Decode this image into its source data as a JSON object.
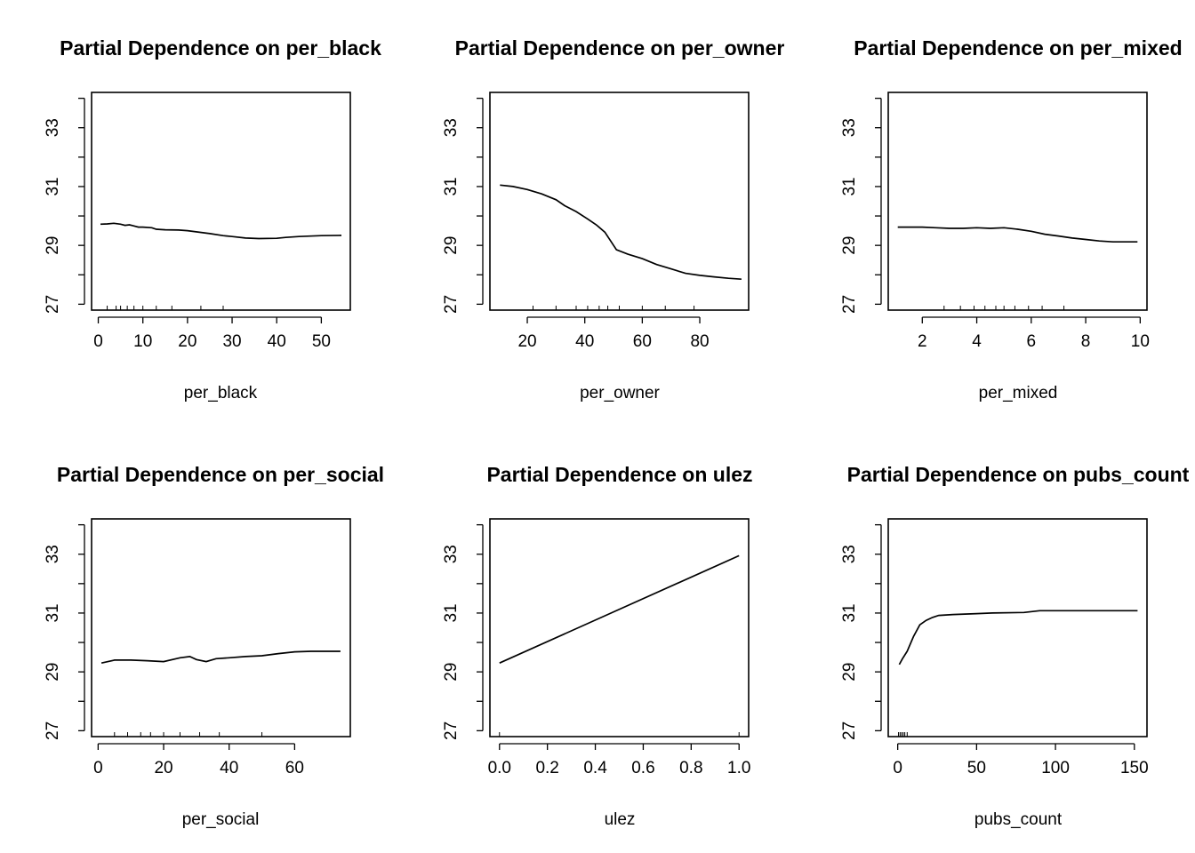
{
  "chart_data": [
    {
      "type": "line",
      "title": "Partial Dependence on per_black",
      "xlabel": "per_black",
      "ylabel": "",
      "xlim": [
        -1.5,
        56.5
      ],
      "ylim": [
        26.8,
        34.2
      ],
      "xticks": [
        0,
        10,
        20,
        30,
        40,
        50
      ],
      "yticks": [
        27,
        28,
        29,
        30,
        31,
        32,
        33,
        34
      ],
      "ytick_labels": [
        "27",
        "",
        "29",
        "",
        "31",
        "",
        "33",
        ""
      ],
      "x": [
        0.5,
        2,
        3.5,
        5,
        6,
        7,
        8,
        9,
        10,
        12,
        13,
        15,
        18,
        20,
        25,
        28,
        30,
        33,
        36,
        40,
        42,
        45,
        50,
        54.5
      ],
      "y": [
        29.72,
        29.73,
        29.75,
        29.72,
        29.68,
        29.7,
        29.66,
        29.62,
        29.62,
        29.6,
        29.55,
        29.53,
        29.52,
        29.5,
        29.4,
        29.33,
        29.3,
        29.25,
        29.23,
        29.24,
        29.27,
        29.3,
        29.33,
        29.34
      ],
      "rug": [
        2,
        4,
        5,
        6.5,
        8,
        10,
        13,
        16.5,
        23,
        28
      ]
    },
    {
      "type": "line",
      "title": "Partial Dependence on per_owner",
      "xlabel": "per_owner",
      "ylabel": "",
      "xlim": [
        7,
        97
      ],
      "ylim": [
        26.8,
        34.2
      ],
      "xticks": [
        20,
        40,
        60,
        80
      ],
      "yticks": [
        27,
        28,
        29,
        30,
        31,
        32,
        33,
        34
      ],
      "ytick_labels": [
        "27",
        "",
        "29",
        "",
        "31",
        "",
        "33",
        ""
      ],
      "x": [
        10.5,
        15,
        20,
        25,
        30,
        33,
        37,
        41,
        44,
        47,
        49,
        51,
        55,
        60,
        65,
        70,
        75,
        80,
        85,
        90,
        94.5
      ],
      "y": [
        31.05,
        31.0,
        30.9,
        30.75,
        30.55,
        30.35,
        30.15,
        29.9,
        29.7,
        29.45,
        29.15,
        28.85,
        28.7,
        28.55,
        28.35,
        28.2,
        28.05,
        27.98,
        27.93,
        27.88,
        27.85
      ],
      "rug": [
        22,
        30,
        37,
        41,
        45,
        48,
        52,
        60,
        68,
        78
      ]
    },
    {
      "type": "line",
      "title": "Partial Dependence on per_mixed",
      "xlabel": "per_mixed",
      "ylabel": "",
      "xlim": [
        0.75,
        10.25
      ],
      "ylim": [
        26.8,
        34.2
      ],
      "xticks": [
        2,
        4,
        6,
        8,
        10
      ],
      "yticks": [
        27,
        28,
        29,
        30,
        31,
        32,
        33,
        34
      ],
      "ytick_labels": [
        "27",
        "",
        "29",
        "",
        "31",
        "",
        "33",
        ""
      ],
      "x": [
        1.1,
        2,
        2.5,
        3,
        3.5,
        4,
        4.5,
        5,
        5.5,
        6,
        6.5,
        7,
        7.5,
        8,
        8.5,
        9,
        9.9
      ],
      "y": [
        29.62,
        29.62,
        29.6,
        29.58,
        29.58,
        29.6,
        29.58,
        29.6,
        29.55,
        29.48,
        29.38,
        29.32,
        29.25,
        29.2,
        29.15,
        29.12,
        29.12
      ],
      "rug": [
        2.8,
        3.4,
        3.9,
        4.3,
        4.7,
        5.0,
        5.4,
        5.9,
        6.4,
        7.2
      ]
    },
    {
      "type": "line",
      "title": "Partial Dependence on per_social",
      "xlabel": "per_social",
      "ylabel": "",
      "xlim": [
        -2,
        77
      ],
      "ylim": [
        26.8,
        34.2
      ],
      "xticks": [
        0,
        20,
        40,
        60
      ],
      "yticks": [
        27,
        28,
        29,
        30,
        31,
        32,
        33,
        34
      ],
      "ytick_labels": [
        "27",
        "",
        "29",
        "",
        "31",
        "",
        "33",
        ""
      ],
      "x": [
        1,
        3,
        5,
        10,
        15,
        20,
        25,
        28,
        30,
        33,
        36,
        40,
        45,
        50,
        55,
        60,
        65,
        70,
        74
      ],
      "y": [
        29.3,
        29.35,
        29.4,
        29.4,
        29.38,
        29.35,
        29.48,
        29.52,
        29.42,
        29.35,
        29.45,
        29.48,
        29.52,
        29.55,
        29.62,
        29.68,
        29.7,
        29.7,
        29.7
      ],
      "rug": [
        5,
        9,
        13,
        16,
        20,
        25,
        31,
        37,
        50
      ]
    },
    {
      "type": "line",
      "title": "Partial Dependence on ulez",
      "xlabel": "ulez",
      "ylabel": "",
      "xlim": [
        -0.04,
        1.04
      ],
      "ylim": [
        26.8,
        34.2
      ],
      "xticks": [
        0.0,
        0.2,
        0.4,
        0.6,
        0.8,
        1.0
      ],
      "xtick_labels": [
        "0.0",
        "0.2",
        "0.4",
        "0.6",
        "0.8",
        "1.0"
      ],
      "yticks": [
        27,
        28,
        29,
        30,
        31,
        32,
        33,
        34
      ],
      "ytick_labels": [
        "27",
        "",
        "29",
        "",
        "31",
        "",
        "33",
        ""
      ],
      "x": [
        0,
        1
      ],
      "y": [
        29.3,
        32.95
      ],
      "rug": [
        0,
        1
      ]
    },
    {
      "type": "line",
      "title": "Partial Dependence on pubs_count",
      "xlabel": "pubs_count",
      "ylabel": "",
      "xlim": [
        -6,
        158
      ],
      "ylim": [
        26.8,
        34.2
      ],
      "xticks": [
        0,
        50,
        100,
        150
      ],
      "yticks": [
        27,
        28,
        29,
        30,
        31,
        32,
        33,
        34
      ],
      "ytick_labels": [
        "27",
        "",
        "29",
        "",
        "31",
        "",
        "33",
        ""
      ],
      "x": [
        1,
        3,
        6,
        10,
        14,
        18,
        22,
        26,
        35,
        50,
        60,
        80,
        90,
        100,
        120,
        140,
        152
      ],
      "y": [
        29.25,
        29.45,
        29.7,
        30.2,
        30.6,
        30.75,
        30.85,
        30.92,
        30.95,
        30.98,
        31.0,
        31.02,
        31.08,
        31.08,
        31.08,
        31.08,
        31.08
      ],
      "rug": [
        0.5,
        1.5,
        2.5,
        3.5,
        4.5,
        6
      ]
    }
  ]
}
